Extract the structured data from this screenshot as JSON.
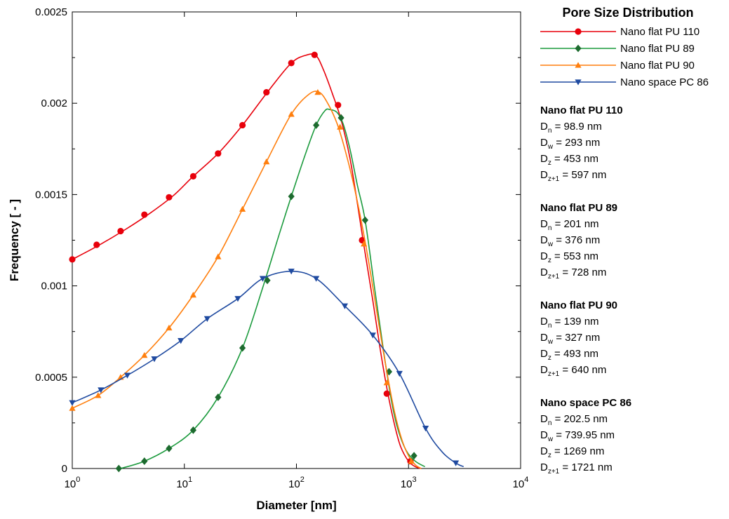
{
  "chart_data": {
    "type": "line",
    "title": "",
    "xlabel": "Diameter [nm]",
    "ylabel": "Frequency [ - ]",
    "xscale": "log",
    "xlim": [
      1,
      10000
    ],
    "ylim": [
      0,
      0.0025
    ],
    "grid": false,
    "legend_title": "Pore Size Distribution",
    "legend_position": "right",
    "y_ticks": [
      0,
      0.0005,
      0.001,
      0.0015,
      0.002,
      0.0025
    ],
    "y_tick_labels": [
      "0",
      "0.0005",
      "0.001",
      "0.0015",
      "0.002",
      "0.0025"
    ],
    "x_ticks": [
      1,
      10,
      100,
      1000,
      10000
    ],
    "x_tick_labels": [
      {
        "base": "10",
        "exp": "0"
      },
      {
        "base": "10",
        "exp": "1"
      },
      {
        "base": "10",
        "exp": "2"
      },
      {
        "base": "10",
        "exp": "3"
      },
      {
        "base": "10",
        "exp": "4"
      }
    ],
    "series": [
      {
        "name": "Nano flat PU 110",
        "color": "#e8000b",
        "marker": "circle",
        "curve": [
          [
            1,
            0.001145
          ],
          [
            1.7,
            0.00122
          ],
          [
            3,
            0.00131
          ],
          [
            5,
            0.0014
          ],
          [
            8,
            0.001495
          ],
          [
            12,
            0.0016
          ],
          [
            20,
            0.001725
          ],
          [
            33,
            0.00188
          ],
          [
            55,
            0.00206
          ],
          [
            90,
            0.00222
          ],
          [
            125,
            0.002265
          ],
          [
            150,
            0.00226
          ],
          [
            175,
            0.00218
          ],
          [
            210,
            0.00205
          ],
          [
            250,
            0.00191
          ],
          [
            300,
            0.0017
          ],
          [
            350,
            0.00145
          ],
          [
            400,
            0.00122
          ],
          [
            480,
            0.00092
          ],
          [
            560,
            0.00065
          ],
          [
            650,
            0.00042
          ],
          [
            750,
            0.00024
          ],
          [
            850,
            0.00012
          ],
          [
            1000,
            4e-05
          ],
          [
            1150,
            1e-05
          ],
          [
            1300,
            0
          ]
        ],
        "markers": [
          [
            1,
            0.001145
          ],
          [
            1.65,
            0.001225
          ],
          [
            2.7,
            0.0013
          ],
          [
            4.4,
            0.00139
          ],
          [
            7.3,
            0.001485
          ],
          [
            12,
            0.0016
          ],
          [
            20,
            0.001725
          ],
          [
            33,
            0.00188
          ],
          [
            54,
            0.00206
          ],
          [
            90,
            0.00222
          ],
          [
            145,
            0.002265
          ],
          [
            235,
            0.00199
          ],
          [
            385,
            0.00125
          ],
          [
            640,
            0.00041
          ],
          [
            1040,
            4e-05
          ]
        ]
      },
      {
        "name": "Nano flat PU 89",
        "color": "#1a9a3c",
        "marker": "diamond",
        "marker_color": "#1d6b2f",
        "curve": [
          [
            2.7,
            0
          ],
          [
            4.4,
            4e-05
          ],
          [
            7.3,
            0.00011
          ],
          [
            12,
            0.00021
          ],
          [
            20,
            0.00039
          ],
          [
            33,
            0.00066
          ],
          [
            50,
            0.00099
          ],
          [
            70,
            0.00128
          ],
          [
            90,
            0.00149
          ],
          [
            120,
            0.00172
          ],
          [
            150,
            0.00188
          ],
          [
            180,
            0.00196
          ],
          [
            200,
            0.001965
          ],
          [
            230,
            0.00195
          ],
          [
            260,
            0.00189
          ],
          [
            300,
            0.00175
          ],
          [
            350,
            0.00155
          ],
          [
            410,
            0.00136
          ],
          [
            500,
            0.00098
          ],
          [
            600,
            0.00064
          ],
          [
            700,
            0.00038
          ],
          [
            800,
            0.00022
          ],
          [
            950,
            0.0001
          ],
          [
            1150,
            4e-05
          ],
          [
            1400,
            1e-05
          ]
        ],
        "markers": [
          [
            2.6,
            0
          ],
          [
            4.4,
            4e-05
          ],
          [
            7.3,
            0.00011
          ],
          [
            12,
            0.00021
          ],
          [
            20,
            0.00039
          ],
          [
            33,
            0.00066
          ],
          [
            55,
            0.00103
          ],
          [
            90,
            0.00149
          ],
          [
            150,
            0.00188
          ],
          [
            250,
            0.00192
          ],
          [
            410,
            0.00136
          ],
          [
            670,
            0.00053
          ],
          [
            1120,
            7e-05
          ]
        ]
      },
      {
        "name": "Nano flat PU 90",
        "color": "#ff7f0e",
        "marker": "triangle-up",
        "curve": [
          [
            1,
            0.00033
          ],
          [
            1.7,
            0.0004
          ],
          [
            2.7,
            0.0005
          ],
          [
            4.4,
            0.00062
          ],
          [
            7.3,
            0.00077
          ],
          [
            12,
            0.00095
          ],
          [
            20,
            0.00116
          ],
          [
            33,
            0.00142
          ],
          [
            54,
            0.00168
          ],
          [
            90,
            0.00194
          ],
          [
            130,
            0.00205
          ],
          [
            160,
            0.00206
          ],
          [
            190,
            0.002
          ],
          [
            230,
            0.00189
          ],
          [
            270,
            0.00175
          ],
          [
            320,
            0.00157
          ],
          [
            380,
            0.00135
          ],
          [
            450,
            0.0011
          ],
          [
            540,
            0.0008
          ],
          [
            640,
            0.00053
          ],
          [
            750,
            0.00031
          ],
          [
            870,
            0.00016
          ],
          [
            1000,
            7e-05
          ],
          [
            1150,
            2e-05
          ],
          [
            1300,
            0
          ]
        ],
        "markers": [
          [
            1,
            0.00033
          ],
          [
            1.7,
            0.0004
          ],
          [
            2.7,
            0.0005
          ],
          [
            4.4,
            0.00062
          ],
          [
            7.3,
            0.00077
          ],
          [
            12,
            0.00095
          ],
          [
            20,
            0.00116
          ],
          [
            33,
            0.00142
          ],
          [
            54,
            0.00168
          ],
          [
            90,
            0.00194
          ],
          [
            155,
            0.00206
          ],
          [
            245,
            0.00187
          ],
          [
            400,
            0.00123
          ],
          [
            640,
            0.00047
          ],
          [
            1060,
            4e-05
          ]
        ]
      },
      {
        "name": "Nano space PC 86",
        "color": "#1f4aa0",
        "marker": "triangle-down",
        "marker_color": "#1f4aa0",
        "curve": [
          [
            1,
            0.00036
          ],
          [
            1.8,
            0.00043
          ],
          [
            3.1,
            0.00051
          ],
          [
            5.4,
            0.0006
          ],
          [
            9.3,
            0.0007
          ],
          [
            16,
            0.00082
          ],
          [
            30,
            0.00093
          ],
          [
            50,
            0.00104
          ],
          [
            90,
            0.00108
          ],
          [
            150,
            0.00104
          ],
          [
            270,
            0.00089
          ],
          [
            480,
            0.00073
          ],
          [
            830,
            0.00052
          ],
          [
            1420,
            0.00022
          ],
          [
            2000,
            9e-05
          ],
          [
            2640,
            3e-05
          ],
          [
            3100,
            1e-05
          ]
        ],
        "markers": [
          [
            1,
            0.00036
          ],
          [
            1.8,
            0.00043
          ],
          [
            3.1,
            0.00051
          ],
          [
            5.4,
            0.0006
          ],
          [
            9.3,
            0.0007
          ],
          [
            16,
            0.00082
          ],
          [
            30,
            0.00093
          ],
          [
            50,
            0.00104
          ],
          [
            90,
            0.00108
          ],
          [
            150,
            0.00104
          ],
          [
            270,
            0.00089
          ],
          [
            480,
            0.00073
          ],
          [
            830,
            0.00052
          ],
          [
            1420,
            0.00022
          ],
          [
            2640,
            3e-05
          ]
        ]
      }
    ]
  },
  "stats": [
    {
      "title": "Nano flat PU 110",
      "rows": [
        {
          "sym": "D",
          "sub": "n",
          "value": " = 98.9 nm"
        },
        {
          "sym": "D",
          "sub": "w",
          "value": " = 293 nm"
        },
        {
          "sym": "D",
          "sub": "z",
          "value": " = 453 nm"
        },
        {
          "sym": "D",
          "sub": "z+1",
          "value": " = 597 nm"
        }
      ]
    },
    {
      "title": "Nano flat PU 89",
      "rows": [
        {
          "sym": "D",
          "sub": "n",
          "value": " = 201 nm"
        },
        {
          "sym": "D",
          "sub": "w",
          "value": " = 376 nm"
        },
        {
          "sym": "D",
          "sub": "z",
          "value": " = 553 nm"
        },
        {
          "sym": "D",
          "sub": "z+1",
          "value": " = 728 nm"
        }
      ]
    },
    {
      "title": "Nano flat PU 90",
      "rows": [
        {
          "sym": "D",
          "sub": "n",
          "value": " = 139 nm"
        },
        {
          "sym": "D",
          "sub": "w",
          "value": " = 327 nm"
        },
        {
          "sym": "D",
          "sub": "z",
          "value": " = 493 nm"
        },
        {
          "sym": "D",
          "sub": "z+1",
          "value": " = 640 nm"
        }
      ]
    },
    {
      "title": "Nano space PC 86",
      "rows": [
        {
          "sym": "D",
          "sub": "n",
          "value": " = 202.5 nm"
        },
        {
          "sym": "D",
          "sub": "w",
          "value": " = 739.95 nm"
        },
        {
          "sym": "D",
          "sub": "z",
          "value": " = 1269 nm"
        },
        {
          "sym": "D",
          "sub": "z+1",
          "value": " = 1721 nm"
        }
      ]
    }
  ]
}
